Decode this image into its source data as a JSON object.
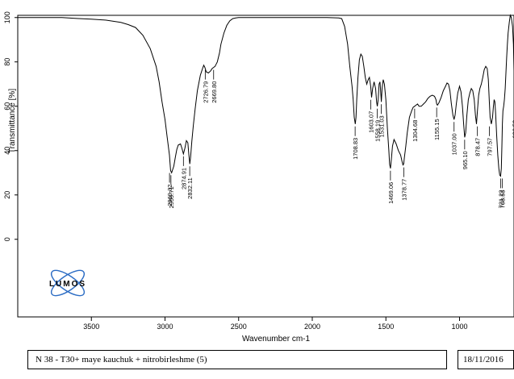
{
  "footer": {
    "sample_label": "N 38 - T30+ maye kauchuk + nitrobirleshme (5)",
    "date": "18/11/2016"
  },
  "logo": {
    "text": "LUMOS"
  },
  "chart_data": {
    "type": "line",
    "xlabel": "Wavenumber cm-1",
    "ylabel": "Transmittance [%]",
    "xlim": [
      4000,
      630
    ],
    "ylim": [
      -35,
      101
    ],
    "x_reversed": true,
    "x_ticks": [
      3500,
      3000,
      2500,
      2000,
      1500,
      1000
    ],
    "y_ticks": [
      0,
      20,
      40,
      60,
      80,
      100
    ],
    "grid": false,
    "series": [
      {
        "x": [
          4000,
          3700,
          3600,
          3500,
          3400,
          3300,
          3250,
          3200,
          3150,
          3100,
          3060,
          3040,
          3020,
          3000,
          2985,
          2970,
          2962,
          2955,
          2950,
          2940,
          2930,
          2920,
          2910,
          2895,
          2885,
          2875,
          2865,
          2855,
          2845,
          2838,
          2832,
          2826,
          2818,
          2808,
          2795,
          2780,
          2760,
          2745,
          2737,
          2729,
          2720,
          2705,
          2690,
          2680,
          2670,
          2660,
          2645,
          2630,
          2620,
          2600,
          2580,
          2560,
          2540,
          2520,
          2500,
          2300,
          2100,
          1900,
          1820,
          1800,
          1780,
          1760,
          1745,
          1730,
          1722,
          1715,
          1708,
          1703,
          1698,
          1690,
          1680,
          1670,
          1660,
          1650,
          1640,
          1630,
          1620,
          1612,
          1603,
          1597,
          1590,
          1580,
          1570,
          1563,
          1558,
          1552,
          1546,
          1540,
          1536,
          1531,
          1526,
          1518,
          1510,
          1500,
          1490,
          1480,
          1475,
          1469,
          1463,
          1455,
          1445,
          1430,
          1415,
          1400,
          1390,
          1384,
          1379,
          1374,
          1365,
          1355,
          1340,
          1325,
          1315,
          1305,
          1295,
          1285,
          1275,
          1260,
          1245,
          1230,
          1215,
          1200,
          1185,
          1170,
          1160,
          1155,
          1150,
          1140,
          1125,
          1110,
          1095,
          1085,
          1075,
          1065,
          1055,
          1045,
          1037,
          1030,
          1022,
          1012,
          1000,
          990,
          980,
          972,
          965,
          958,
          950,
          940,
          930,
          920,
          910,
          900,
          892,
          885,
          878,
          870,
          862,
          852,
          842,
          832,
          822,
          812,
          804,
          798,
          792,
          784,
          776,
          770,
          765,
          760,
          755,
          748,
          740,
          733,
          727,
          721,
          716,
          712,
          709,
          705,
          700,
          695,
          690,
          685,
          680,
          675,
          670,
          662,
          655,
          648,
          640,
          634,
          630
        ],
        "y": [
          100,
          100,
          99.6,
          99.3,
          98.8,
          97.8,
          96.8,
          95.5,
          92,
          86,
          78,
          71,
          62,
          54,
          46,
          38,
          31,
          30,
          31,
          33,
          37,
          40.5,
          42.5,
          43,
          41,
          38.5,
          41,
          44.5,
          43.5,
          38,
          34,
          37,
          44,
          51,
          59,
          67,
          74,
          77,
          78.5,
          77.5,
          75.5,
          75,
          76,
          77,
          77.5,
          78,
          80,
          84,
          88,
          93,
          96.5,
          98.5,
          99.5,
          99.8,
          100,
          100,
          100,
          100,
          99.8,
          99.5,
          96,
          88,
          78,
          69,
          63,
          55,
          52,
          55,
          63,
          73,
          81,
          83.5,
          82.5,
          78,
          73,
          70,
          72,
          73,
          69,
          64,
          68,
          71,
          68,
          62,
          60,
          63,
          70,
          71,
          67,
          62,
          68,
          72,
          70,
          63,
          50,
          40,
          34,
          32,
          36,
          42,
          45,
          43,
          40,
          38,
          35,
          33.5,
          34,
          37,
          42,
          48,
          55,
          58,
          59.5,
          60,
          60.5,
          61,
          60,
          60,
          61,
          62,
          63.5,
          64.5,
          65,
          64.5,
          63,
          61,
          60.5,
          61.5,
          64,
          67,
          69,
          70.5,
          70,
          67,
          61,
          56,
          54,
          56,
          61,
          66,
          69,
          66.5,
          60,
          52,
          46,
          48,
          56,
          63,
          66,
          68,
          67,
          63,
          56,
          52,
          58,
          65,
          68,
          70,
          73,
          76.5,
          78,
          77,
          72,
          63,
          55,
          52,
          55,
          60,
          63,
          62,
          57,
          47,
          38,
          32,
          29,
          28.5,
          32,
          42,
          52,
          58,
          60,
          63,
          68,
          75,
          82,
          88,
          93,
          98,
          101,
          100,
          96,
          88,
          76
        ]
      }
    ],
    "peak_labels": [
      "2969.32",
      "2959.71",
      "2874.91",
      "2832.11",
      "2726.79",
      "2669.80",
      "1708.83",
      "1603.07",
      "1558.19",
      "1531.03",
      "1469.06",
      "1378.77",
      "1304.68",
      "1155.15",
      "1037.00",
      "965.10",
      "878.47",
      "797.57",
      "721.22",
      "708.53",
      "626.52"
    ],
    "peak_x": [
      2969.32,
      2959.71,
      2874.91,
      2832.11,
      2726.79,
      2669.8,
      1708.83,
      1603.07,
      1558.19,
      1531.03,
      1469.06,
      1378.77,
      1304.68,
      1155.15,
      1037.0,
      965.1,
      878.47,
      797.57,
      721.22,
      708.53,
      626.52
    ],
    "peak_y": [
      31,
      30,
      38.5,
      34,
      77.5,
      77.5,
      52,
      64,
      60,
      62,
      32,
      33.5,
      60,
      60.5,
      54,
      46,
      52,
      52,
      28.5,
      28.5,
      60
    ]
  }
}
